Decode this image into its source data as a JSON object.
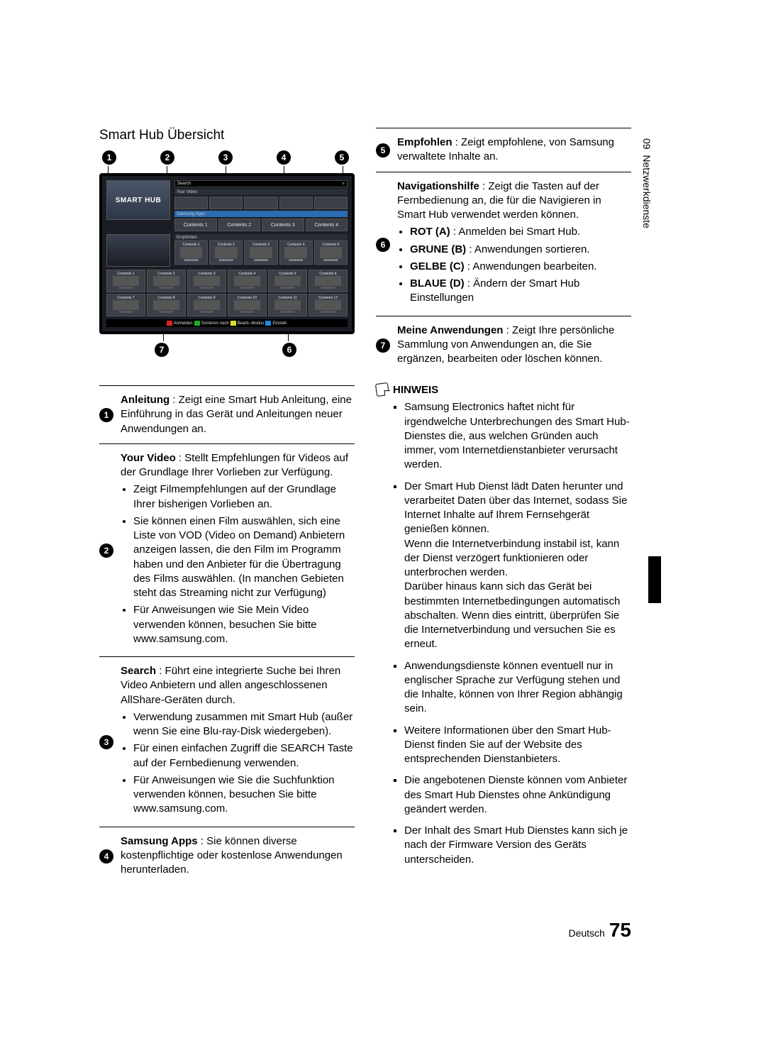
{
  "title": "Smart Hub Übersicht",
  "diagram": {
    "callouts_top": [
      "1",
      "2",
      "3",
      "4",
      "5"
    ],
    "callouts_bottom": [
      "7",
      "6"
    ],
    "logo": "SMART HUB",
    "search_label": "Search",
    "search_icon": "⌕",
    "yourvideo_label": "Your Video",
    "apps_label": "Samsung Apps",
    "apps_items": [
      "Contents 1",
      "Contents 2",
      "Contents 3",
      "Contents 4"
    ],
    "recommended_label": "Empfohlen",
    "rec_items": [
      "Contents 1",
      "Contents 2",
      "Contents 3",
      "Contents 4",
      "Contents 5"
    ],
    "rec_sub": "xxxxxxxx",
    "myapps": [
      [
        "Contents 1",
        "Contents 2",
        "Contents 3",
        "Contents 4",
        "Contents 5",
        "Contents 6"
      ],
      [
        "Contents 7",
        "Contents 8",
        "Contents 9",
        "Contents 10",
        "Contents 11",
        "Contents 12"
      ]
    ],
    "nav": {
      "a": "Anmelden",
      "b": "Sortieren nach",
      "c": "Bearb.-Modus",
      "d": "Einstell."
    }
  },
  "entries_left": [
    {
      "n": "1",
      "lead_bold": "Anleitung",
      "lead": ": Zeigt eine Smart Hub Anleitung, eine Einführung in das Gerät und Anleitungen neuer Anwendungen an."
    },
    {
      "n": "2",
      "lead_bold": "Your Video",
      "lead": ": Stellt Empfehlungen für Videos auf der Grundlage Ihrer Vorlieben zur Verfügung.",
      "bullets": [
        "Zeigt Filmempfehlungen auf der Grundlage Ihrer bisherigen Vorlieben an.",
        "Sie können einen Film auswählen, sich eine Liste von VOD (Video on Demand) Anbietern anzeigen lassen, die den Film im Programm haben und den Anbieter für die Übertragung des Films auswählen. (In manchen Gebieten steht das Streaming nicht zur Verfügung)",
        "Für Anweisungen wie Sie Mein Video verwenden können, besuchen Sie bitte www.samsung.com."
      ]
    },
    {
      "n": "3",
      "lead_bold": "Search",
      "lead": ": Führt eine integrierte Suche bei Ihren Video Anbietern und allen angeschlossenen AllShare-Geräten durch.",
      "bullets": [
        "Verwendung zusammen mit Smart Hub (außer wenn Sie eine Blu-ray-Disk wiedergeben).",
        "Für einen einfachen Zugriff die SEARCH Taste auf der Fernbedienung verwenden.",
        "Für Anweisungen wie Sie die Suchfunktion verwenden können, besuchen Sie bitte www.samsung.com."
      ]
    },
    {
      "n": "4",
      "lead_bold": "Samsung Apps",
      "lead": ": Sie können diverse kostenpflichtige oder kostenlose Anwendungen herunterladen.",
      "last": true
    }
  ],
  "entries_right": [
    {
      "n": "5",
      "lead_bold": "Empfohlen",
      "lead": ": Zeigt empfohlene, von Samsung verwaltete Inhalte an."
    },
    {
      "n": "6",
      "lead_bold": "Navigationshilfe",
      "lead": ": Zeigt die Tasten auf der Fernbedienung an, die für die Navigieren in Smart Hub verwendet werden können.",
      "kv": [
        {
          "k": "ROT (A)",
          "v": ": Anmelden bei Smart Hub."
        },
        {
          "k": "GRUNE (B)",
          "v": ": Anwendungen sortieren."
        },
        {
          "k": "GELBE (C)",
          "v": ": Anwendungen bearbeiten."
        },
        {
          "k": "BLAUE (D)",
          "v": ": Ändern der Smart Hub Einstellungen"
        }
      ]
    },
    {
      "n": "7",
      "lead_bold": "Meine Anwendungen",
      "lead": ": Zeigt Ihre persönliche Sammlung von Anwendungen an, die Sie ergänzen, bearbeiten oder löschen können.",
      "last": true
    }
  ],
  "hinweis": {
    "label": "HINWEIS",
    "items": [
      "Samsung Electronics haftet nicht für irgendwelche Unterbrechungen des Smart Hub-Dienstes die, aus welchen Gründen auch immer, vom Internetdienstanbieter verursacht werden.",
      "Der Smart Hub Dienst lädt Daten herunter und verarbeitet Daten über das Internet, sodass Sie Internet Inhalte auf Ihrem Fernsehgerät genießen können.\nWenn die Internetverbindung instabil ist, kann der Dienst verzögert funktionieren oder unterbrochen werden.\nDarüber hinaus kann sich das Gerät bei bestimmten Internetbedingungen automatisch abschalten. Wenn dies eintritt, überprüfen Sie die Internetverbindung und versuchen Sie es erneut.",
      "Anwendungsdienste können eventuell nur in englischer Sprache zur Verfügung stehen und die Inhalte, können von Ihrer Region abhängig sein.",
      "Weitere Informationen über den Smart Hub-Dienst finden Sie auf der Website des entsprechenden Dienstanbieters.",
      "Die angebotenen Dienste können vom Anbieter des Smart Hub Dienstes ohne Ankündigung geändert werden.",
      "Der Inhalt des Smart Hub Dienstes kann sich je nach der Firmware Version des Geräts unterscheiden."
    ]
  },
  "side": {
    "chapter_no": "09",
    "chapter": "Netzwerkdienste"
  },
  "footer": {
    "lang": "Deutsch",
    "page": "75"
  }
}
